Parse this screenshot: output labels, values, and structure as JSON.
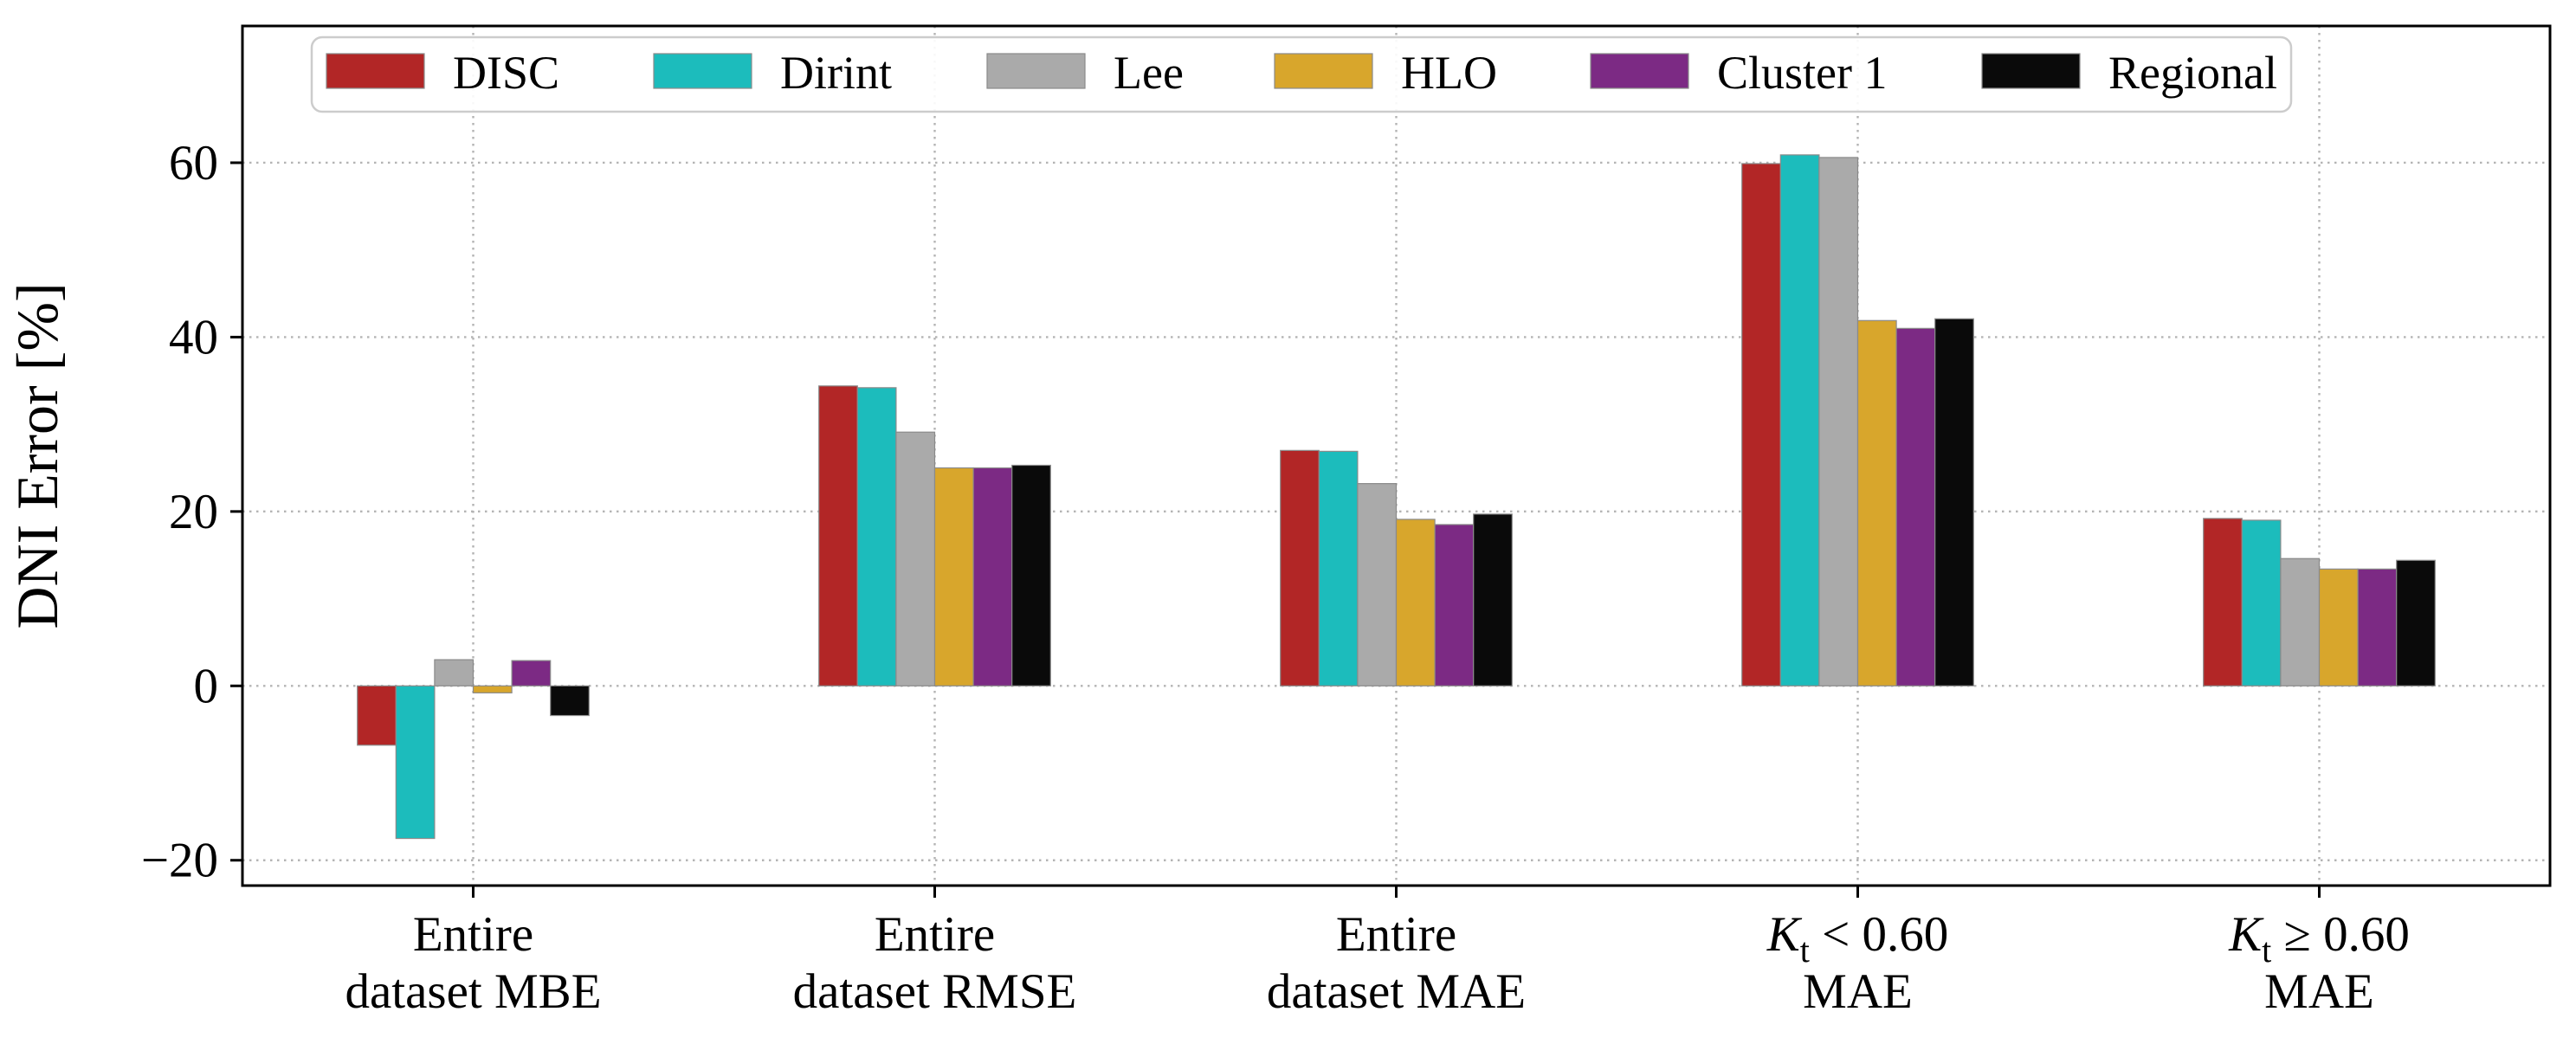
{
  "chart_data": {
    "type": "bar",
    "title": "",
    "ylabel": "DNI Error [%]",
    "xlabel": "",
    "yticks": [
      -20,
      0,
      20,
      40,
      60
    ],
    "ylim": [
      -23,
      75.7
    ],
    "grid": "dotted, both axes, under bars",
    "legend_position": "top inside, horizontal row",
    "spine_color": "#000000",
    "grid_color": "#b4b4b4",
    "background_color": "#ffffff",
    "categories": [
      "Entire dataset MBE",
      "Entire dataset RMSE",
      "Entire dataset MAE",
      "K_t < 0.60 MAE",
      "K_t ≥ 0.60 MAE"
    ],
    "category_label_lines": [
      [
        "Entire",
        "dataset MBE"
      ],
      [
        "Entire",
        "dataset RMSE"
      ],
      [
        "Entire",
        "dataset MAE"
      ],
      [
        "K_t < 0.60",
        "MAE"
      ],
      [
        "K_t ≥ 0.60",
        "MAE"
      ]
    ],
    "series": [
      {
        "name": "DISC",
        "color": "#b22626",
        "values": [
          -6.8,
          34.4,
          27.0,
          59.9,
          19.2
        ]
      },
      {
        "name": "Dirint",
        "color": "#1cbcbc",
        "values": [
          -17.5,
          34.2,
          26.9,
          60.9,
          19.0
        ]
      },
      {
        "name": "Lee",
        "color": "#aaaaaa",
        "values": [
          3.0,
          29.1,
          23.2,
          60.6,
          14.6
        ]
      },
      {
        "name": "HLO",
        "color": "#d8a62c",
        "values": [
          -0.8,
          25.0,
          19.1,
          41.9,
          13.4
        ]
      },
      {
        "name": "Cluster 1",
        "color": "#7c2a84",
        "values": [
          2.9,
          25.0,
          18.5,
          41.0,
          13.4
        ]
      },
      {
        "name": "Regional",
        "color": "#0a0a0a",
        "values": [
          -3.4,
          25.3,
          19.7,
          42.1,
          14.4
        ]
      }
    ]
  }
}
